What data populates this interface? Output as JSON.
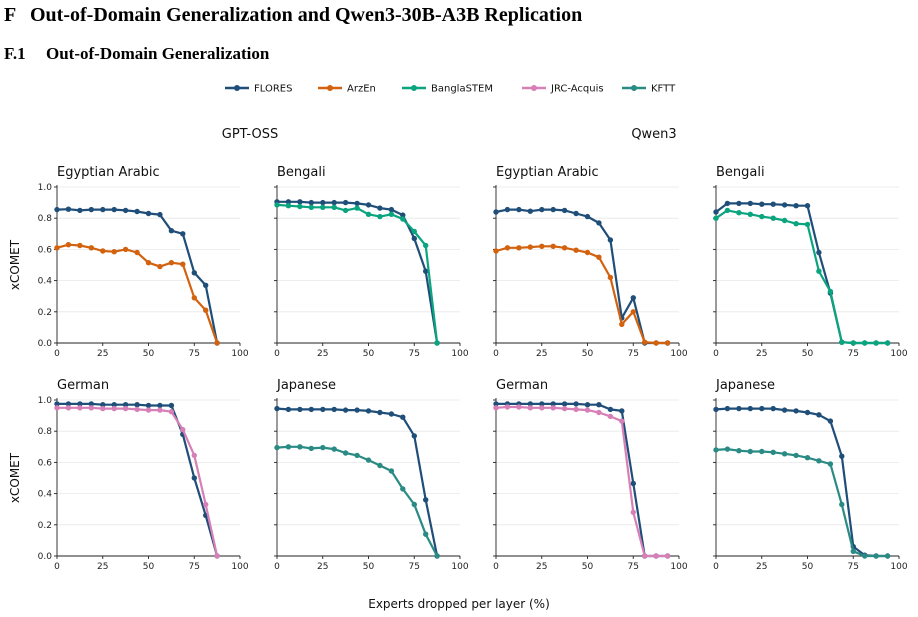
{
  "section": {
    "number": "F",
    "title": "Out-of-Domain Generalization and Qwen3-30B-A3B Replication"
  },
  "subsection": {
    "number": "F.1",
    "title": "Out-of-Domain Generalization"
  },
  "legend": [
    {
      "name": "FLORES",
      "color": "#1f4e79"
    },
    {
      "name": "ArzEn",
      "color": "#d3620e"
    },
    {
      "name": "BanglaSTEM",
      "color": "#0aa57f"
    },
    {
      "name": "JRC-Acquis",
      "color": "#d77fb7"
    },
    {
      "name": "KFTT",
      "color": "#2a8a84"
    }
  ],
  "models": [
    "GPT-OSS",
    "Qwen3"
  ],
  "shared_xlabel": "Experts dropped per layer (%)",
  "chart_data": [
    {
      "type": "line",
      "model": "GPT-OSS",
      "title": "Egyptian Arabic",
      "ylabel": "xCOMET",
      "xlim": [
        0,
        100
      ],
      "ylim": [
        0,
        1
      ],
      "xticks": [
        "0",
        "25",
        "50",
        "75",
        "100"
      ],
      "yticks": [
        "0.0",
        "0.2",
        "0.4",
        "0.6",
        "0.8",
        "1.0"
      ],
      "series": [
        {
          "name": "FLORES",
          "x": [
            0,
            6.25,
            12.5,
            18.75,
            25,
            31.25,
            37.5,
            43.75,
            50,
            56.25,
            62.5,
            68.75,
            75,
            81.25,
            87.5
          ],
          "y": [
            0.855,
            0.858,
            0.85,
            0.855,
            0.855,
            0.855,
            0.85,
            0.843,
            0.83,
            0.823,
            0.72,
            0.7,
            0.45,
            0.37,
            0.0
          ]
        },
        {
          "name": "ArzEn",
          "x": [
            0,
            6.25,
            12.5,
            18.75,
            25,
            31.25,
            37.5,
            43.75,
            50,
            56.25,
            62.5,
            68.75,
            75,
            81.25,
            87.5
          ],
          "y": [
            0.61,
            0.63,
            0.625,
            0.61,
            0.59,
            0.585,
            0.6,
            0.58,
            0.515,
            0.49,
            0.515,
            0.505,
            0.29,
            0.21,
            0.0
          ]
        }
      ]
    },
    {
      "type": "line",
      "model": "GPT-OSS",
      "title": "Bengali",
      "ylabel": "",
      "xlim": [
        0,
        100
      ],
      "ylim": [
        0,
        1
      ],
      "xticks": [
        "0",
        "25",
        "50",
        "75",
        "100"
      ],
      "yticks": [],
      "series": [
        {
          "name": "FLORES",
          "x": [
            0,
            6.25,
            12.5,
            18.75,
            25,
            31.25,
            37.5,
            43.75,
            50,
            56.25,
            62.5,
            68.75,
            75,
            81.25,
            87.5
          ],
          "y": [
            0.905,
            0.905,
            0.905,
            0.9,
            0.9,
            0.9,
            0.9,
            0.895,
            0.885,
            0.865,
            0.855,
            0.82,
            0.67,
            0.46,
            0.0
          ]
        },
        {
          "name": "BanglaSTEM",
          "x": [
            0,
            6.25,
            12.5,
            18.75,
            25,
            31.25,
            37.5,
            43.75,
            50,
            56.25,
            62.5,
            68.75,
            75,
            81.25,
            87.5
          ],
          "y": [
            0.885,
            0.88,
            0.875,
            0.87,
            0.87,
            0.87,
            0.85,
            0.865,
            0.825,
            0.81,
            0.825,
            0.795,
            0.715,
            0.625,
            0.0
          ]
        }
      ]
    },
    {
      "type": "line",
      "model": "Qwen3",
      "title": "Egyptian Arabic",
      "ylabel": "",
      "xlim": [
        0,
        100
      ],
      "ylim": [
        0,
        1
      ],
      "xticks": [
        "0",
        "25",
        "50",
        "75",
        "100"
      ],
      "yticks": [],
      "series": [
        {
          "name": "FLORES",
          "x": [
            0,
            6.25,
            12.5,
            18.75,
            25,
            31.25,
            37.5,
            43.75,
            50,
            56.25,
            62.5,
            68.75,
            75,
            81.25,
            87.5,
            93.75
          ],
          "y": [
            0.84,
            0.855,
            0.855,
            0.845,
            0.855,
            0.855,
            0.85,
            0.83,
            0.81,
            0.77,
            0.66,
            0.16,
            0.29,
            0.0,
            0.0,
            0.0
          ]
        },
        {
          "name": "ArzEn",
          "x": [
            0,
            6.25,
            12.5,
            18.75,
            25,
            31.25,
            37.5,
            43.75,
            50,
            56.25,
            62.5,
            68.75,
            75,
            81.25,
            87.5,
            93.75
          ],
          "y": [
            0.59,
            0.61,
            0.61,
            0.615,
            0.62,
            0.62,
            0.61,
            0.595,
            0.58,
            0.55,
            0.42,
            0.12,
            0.2,
            0.005,
            0.0,
            0.0
          ]
        }
      ]
    },
    {
      "type": "line",
      "model": "Qwen3",
      "title": "Bengali",
      "ylabel": "",
      "xlim": [
        0,
        100
      ],
      "ylim": [
        0,
        1
      ],
      "xticks": [
        "0",
        "25",
        "50",
        "75",
        "100"
      ],
      "yticks": [],
      "series": [
        {
          "name": "FLORES",
          "x": [
            0,
            6.25,
            12.5,
            18.75,
            25,
            31.25,
            37.5,
            43.75,
            50,
            56.25,
            62.5,
            68.75,
            75,
            81.25,
            87.5,
            93.75
          ],
          "y": [
            0.84,
            0.895,
            0.895,
            0.895,
            0.89,
            0.89,
            0.885,
            0.88,
            0.88,
            0.58,
            0.32,
            0.005,
            0.0,
            0.0,
            0.0,
            0.0
          ]
        },
        {
          "name": "BanglaSTEM",
          "x": [
            0,
            6.25,
            12.5,
            18.75,
            25,
            31.25,
            37.5,
            43.75,
            50,
            56.25,
            62.5,
            68.75,
            75,
            81.25,
            87.5,
            93.75
          ],
          "y": [
            0.8,
            0.85,
            0.835,
            0.825,
            0.81,
            0.8,
            0.785,
            0.765,
            0.76,
            0.46,
            0.33,
            0.005,
            0.0,
            0.0,
            0.0,
            0.0
          ]
        }
      ]
    },
    {
      "type": "line",
      "model": "GPT-OSS",
      "title": "German",
      "ylabel": "xCOMET",
      "xlim": [
        0,
        100
      ],
      "ylim": [
        0,
        1
      ],
      "xticks": [
        "0",
        "25",
        "50",
        "75",
        "100"
      ],
      "yticks": [
        "0.0",
        "0.2",
        "0.4",
        "0.6",
        "0.8",
        "1.0"
      ],
      "series": [
        {
          "name": "FLORES",
          "x": [
            0,
            6.25,
            12.5,
            18.75,
            25,
            31.25,
            37.5,
            43.75,
            50,
            56.25,
            62.5,
            68.75,
            75,
            81.25,
            87.5
          ],
          "y": [
            0.975,
            0.975,
            0.975,
            0.975,
            0.97,
            0.97,
            0.97,
            0.97,
            0.965,
            0.965,
            0.965,
            0.78,
            0.5,
            0.26,
            0.0
          ]
        },
        {
          "name": "JRC-Acquis",
          "x": [
            0,
            6.25,
            12.5,
            18.75,
            25,
            31.25,
            37.5,
            43.75,
            50,
            56.25,
            62.5,
            68.75,
            75,
            81.25,
            87.5
          ],
          "y": [
            0.95,
            0.95,
            0.95,
            0.95,
            0.945,
            0.945,
            0.945,
            0.94,
            0.935,
            0.935,
            0.925,
            0.81,
            0.645,
            0.33,
            0.0
          ]
        }
      ]
    },
    {
      "type": "line",
      "model": "GPT-OSS",
      "title": "Japanese",
      "ylabel": "",
      "xlim": [
        0,
        100
      ],
      "ylim": [
        0,
        1
      ],
      "xticks": [
        "0",
        "25",
        "50",
        "75",
        "100"
      ],
      "yticks": [],
      "series": [
        {
          "name": "FLORES",
          "x": [
            0,
            6.25,
            12.5,
            18.75,
            25,
            31.25,
            37.5,
            43.75,
            50,
            56.25,
            62.5,
            68.75,
            75,
            81.25,
            87.5
          ],
          "y": [
            0.945,
            0.94,
            0.94,
            0.94,
            0.94,
            0.94,
            0.935,
            0.935,
            0.93,
            0.92,
            0.91,
            0.89,
            0.77,
            0.36,
            0.0
          ]
        },
        {
          "name": "KFTT",
          "x": [
            0,
            6.25,
            12.5,
            18.75,
            25,
            31.25,
            37.5,
            43.75,
            50,
            56.25,
            62.5,
            68.75,
            75,
            81.25,
            87.5
          ],
          "y": [
            0.695,
            0.7,
            0.7,
            0.69,
            0.695,
            0.685,
            0.66,
            0.645,
            0.615,
            0.58,
            0.545,
            0.43,
            0.33,
            0.14,
            0.0
          ]
        }
      ]
    },
    {
      "type": "line",
      "model": "Qwen3",
      "title": "German",
      "ylabel": "",
      "xlim": [
        0,
        100
      ],
      "ylim": [
        0,
        1
      ],
      "xticks": [
        "0",
        "25",
        "50",
        "75",
        "100"
      ],
      "yticks": [],
      "series": [
        {
          "name": "FLORES",
          "x": [
            0,
            6.25,
            12.5,
            18.75,
            25,
            31.25,
            37.5,
            43.75,
            50,
            56.25,
            62.5,
            68.75,
            75,
            81.25,
            87.5,
            93.75
          ],
          "y": [
            0.975,
            0.975,
            0.975,
            0.975,
            0.975,
            0.975,
            0.975,
            0.975,
            0.97,
            0.97,
            0.94,
            0.93,
            0.465,
            0.0,
            0.0,
            0.0
          ]
        },
        {
          "name": "JRC-Acquis",
          "x": [
            0,
            6.25,
            12.5,
            18.75,
            25,
            31.25,
            37.5,
            43.75,
            50,
            56.25,
            62.5,
            68.75,
            75,
            81.25,
            87.5,
            93.75
          ],
          "y": [
            0.95,
            0.955,
            0.955,
            0.95,
            0.95,
            0.95,
            0.945,
            0.94,
            0.935,
            0.92,
            0.895,
            0.865,
            0.28,
            0.0,
            0.0,
            0.0
          ]
        }
      ]
    },
    {
      "type": "line",
      "model": "Qwen3",
      "title": "Japanese",
      "ylabel": "",
      "xlim": [
        0,
        100
      ],
      "ylim": [
        0,
        1
      ],
      "xticks": [
        "0",
        "25",
        "50",
        "75",
        "100"
      ],
      "yticks": [],
      "series": [
        {
          "name": "FLORES",
          "x": [
            0,
            6.25,
            12.5,
            18.75,
            25,
            31.25,
            37.5,
            43.75,
            50,
            56.25,
            62.5,
            68.75,
            75,
            81.25,
            87.5,
            93.75
          ],
          "y": [
            0.94,
            0.945,
            0.945,
            0.945,
            0.945,
            0.945,
            0.935,
            0.93,
            0.92,
            0.905,
            0.865,
            0.64,
            0.06,
            0.005,
            0.0,
            0.0
          ]
        },
        {
          "name": "KFTT",
          "x": [
            0,
            6.25,
            12.5,
            18.75,
            25,
            31.25,
            37.5,
            43.75,
            50,
            56.25,
            62.5,
            68.75,
            75,
            81.25,
            87.5,
            93.75
          ],
          "y": [
            0.68,
            0.685,
            0.675,
            0.67,
            0.67,
            0.665,
            0.655,
            0.645,
            0.63,
            0.61,
            0.59,
            0.33,
            0.03,
            0.0,
            0.0,
            0.0
          ]
        }
      ]
    }
  ]
}
